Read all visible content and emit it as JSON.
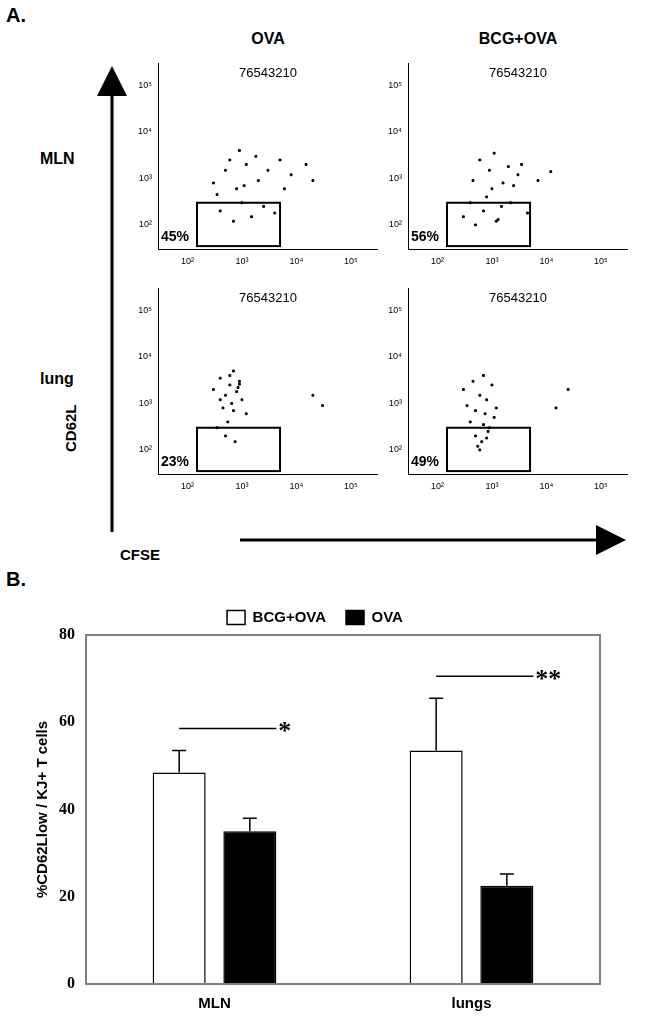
{
  "figure": {
    "panel_labels": [
      "A.",
      "B."
    ],
    "columns": [
      "OVA",
      "BCG+OVA"
    ],
    "rows": [
      "MLN",
      "lung"
    ],
    "x_label": "CFSE",
    "y_label": "CD62L"
  },
  "chart_data": [
    {
      "type": "scatter",
      "annotation": "76543210",
      "color": "#000000",
      "log": true,
      "xlim": [
        30,
        300000
      ],
      "ylim": [
        30,
        300000
      ],
      "xticks": [
        {
          "value": 100,
          "label": "10²"
        },
        {
          "value": 1000,
          "label": "10³"
        },
        {
          "value": 10000,
          "label": "10⁴"
        },
        {
          "value": 100000,
          "label": "10⁵"
        }
      ],
      "yticks": [
        {
          "value": 100,
          "label": "10²"
        },
        {
          "value": 1000,
          "label": "10³"
        },
        {
          "value": 10000,
          "label": "10⁴"
        },
        {
          "value": 100000,
          "label": "10⁵"
        }
      ],
      "x": [
        300,
        500,
        800,
        1200,
        2000,
        3000,
        5000,
        8000,
        15000,
        400,
        700,
        1000,
        1500,
        2500,
        4000,
        600,
        900,
        1800,
        350,
        1100,
        6000,
        20000
      ],
      "values": [
        800,
        1500,
        600,
        2000,
        900,
        1500,
        2500,
        1200,
        2000,
        200,
        120,
        300,
        150,
        250,
        180,
        2500,
        4000,
        3000,
        450,
        700,
        600,
        900
      ],
      "gate": {
        "x": [
          150,
          5000
        ],
        "y": [
          35,
          300
        ],
        "value": 45,
        "label": "45%"
      }
    },
    {
      "type": "scatter",
      "annotation": "76543210",
      "color": "#000000",
      "log": true,
      "xlim": [
        30,
        300000
      ],
      "ylim": [
        30,
        300000
      ],
      "xticks": [
        {
          "value": 100,
          "label": "10²"
        },
        {
          "value": 1000,
          "label": "10³"
        },
        {
          "value": 10000,
          "label": "10⁴"
        },
        {
          "value": 100000,
          "label": "10⁵"
        }
      ],
      "yticks": [
        {
          "value": 100,
          "label": "10²"
        },
        {
          "value": 1000,
          "label": "10³"
        },
        {
          "value": 10000,
          "label": "10⁴"
        },
        {
          "value": 100000,
          "label": "10⁵"
        }
      ],
      "x": [
        300,
        450,
        700,
        900,
        1200,
        1600,
        2200,
        3000,
        4500,
        600,
        800,
        1100,
        1500,
        2500,
        3500,
        500,
        1000,
        2000,
        7000,
        12000,
        400,
        1300
      ],
      "values": [
        150,
        900,
        200,
        1500,
        120,
        800,
        300,
        1200,
        180,
        2500,
        400,
        3500,
        250,
        700,
        2000,
        100,
        600,
        1800,
        900,
        1400,
        300,
        130
      ],
      "gate": {
        "x": [
          150,
          5000
        ],
        "y": [
          35,
          300
        ],
        "value": 56,
        "label": "56%"
      }
    },
    {
      "type": "scatter",
      "annotation": "76543210",
      "color": "#000000",
      "log": true,
      "xlim": [
        30,
        300000
      ],
      "ylim": [
        30,
        300000
      ],
      "xticks": [
        {
          "value": 100,
          "label": "10²"
        },
        {
          "value": 1000,
          "label": "10³"
        },
        {
          "value": 10000,
          "label": "10⁴"
        },
        {
          "value": 100000,
          "label": "10⁵"
        }
      ],
      "yticks": [
        {
          "value": 100,
          "label": "10²"
        },
        {
          "value": 1000,
          "label": "10³"
        },
        {
          "value": 10000,
          "label": "10⁴"
        },
        {
          "value": 100000,
          "label": "10⁵"
        }
      ],
      "x": [
        300,
        400,
        500,
        600,
        700,
        800,
        900,
        1000,
        450,
        650,
        550,
        850,
        750,
        1200,
        350,
        500,
        700,
        20000,
        30000,
        600,
        400,
        900
      ],
      "values": [
        2000,
        3500,
        1500,
        2500,
        5000,
        1800,
        3000,
        1200,
        800,
        1000,
        400,
        2200,
        150,
        600,
        300,
        200,
        700,
        1500,
        900,
        4000,
        1200,
        2600
      ],
      "gate": {
        "x": [
          150,
          5000
        ],
        "y": [
          35,
          300
        ],
        "value": 23,
        "label": "23%"
      }
    },
    {
      "type": "scatter",
      "annotation": "76543210",
      "color": "#000000",
      "log": true,
      "xlim": [
        30,
        300000
      ],
      "ylim": [
        30,
        300000
      ],
      "xticks": [
        {
          "value": 100,
          "label": "10²"
        },
        {
          "value": 1000,
          "label": "10³"
        },
        {
          "value": 10000,
          "label": "10⁴"
        },
        {
          "value": 100000,
          "label": "10⁵"
        }
      ],
      "yticks": [
        {
          "value": 100,
          "label": "10²"
        },
        {
          "value": 1000,
          "label": "10³"
        },
        {
          "value": 10000,
          "label": "10⁴"
        },
        {
          "value": 100000,
          "label": "10⁵"
        }
      ],
      "x": [
        300,
        450,
        600,
        700,
        800,
        1000,
        500,
        650,
        900,
        400,
        550,
        750,
        850,
        1200,
        350,
        600,
        700,
        25000,
        15000,
        500,
        800,
        1100
      ],
      "values": [
        2000,
        3000,
        1500,
        4000,
        1200,
        2500,
        200,
        150,
        300,
        400,
        120,
        600,
        250,
        800,
        900,
        100,
        350,
        2000,
        800,
        700,
        180,
        500
      ],
      "gate": {
        "x": [
          150,
          5000
        ],
        "y": [
          35,
          300
        ],
        "value": 49,
        "label": "49%"
      }
    },
    {
      "type": "bar",
      "y_label": "%CD62Llow / KJ+ T cells",
      "categories": [
        "MLN",
        "lungs"
      ],
      "series": [
        {
          "name": "BCG+OVA",
          "color": "#ffffff",
          "values": [
            48.5,
            53.5
          ],
          "errors": [
            5,
            12
          ]
        },
        {
          "name": "OVA",
          "color": "#000000",
          "values": [
            35,
            22.5
          ],
          "errors": [
            3,
            2.7
          ]
        }
      ],
      "ylim": [
        0,
        80
      ],
      "yticks": [
        0,
        20,
        40,
        60,
        80
      ],
      "grid": false,
      "legend": "top",
      "significance": [
        {
          "category": "MLN",
          "label": "*"
        },
        {
          "category": "lungs",
          "label": "**"
        }
      ]
    }
  ]
}
